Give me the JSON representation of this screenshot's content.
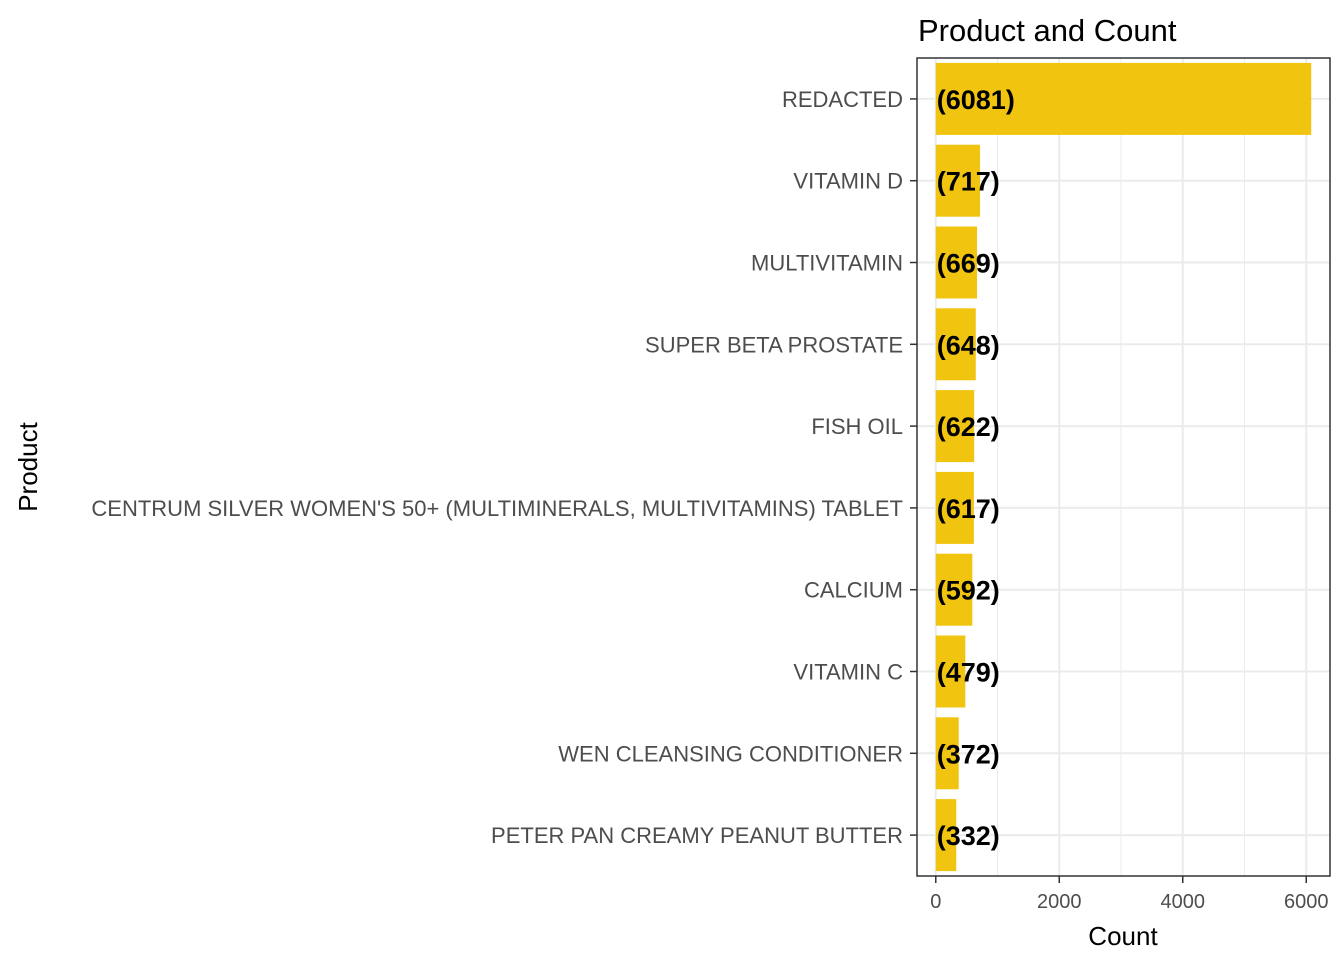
{
  "chart_data": {
    "type": "bar",
    "orientation": "horizontal",
    "title": "Product and Count",
    "xlabel": "Count",
    "ylabel": "Product",
    "categories": [
      "REDACTED",
      "VITAMIN D",
      "MULTIVITAMIN",
      "SUPER BETA PROSTATE",
      "FISH OIL",
      "CENTRUM SILVER WOMEN'S 50+ (MULTIMINERALS, MULTIVITAMINS) TABLET",
      "CALCIUM",
      "VITAMIN C",
      "WEN CLEANSING CONDITIONER",
      "PETER PAN CREAMY PEANUT BUTTER"
    ],
    "values": [
      6081,
      717,
      669,
      648,
      622,
      617,
      592,
      479,
      372,
      332
    ],
    "data_labels": [
      "(6081)",
      "(717)",
      "(669)",
      "(648)",
      "(622)",
      "(617)",
      "(592)",
      "(479)",
      "(372)",
      "(332)"
    ],
    "x_ticks": [
      0,
      2000,
      4000,
      6000
    ],
    "xlim": [
      -304,
      6385
    ],
    "grid": true,
    "legend": "none",
    "bar_color": "#F1C40F",
    "grid_color": "#ebebeb",
    "panel_border_color": "#333333"
  }
}
